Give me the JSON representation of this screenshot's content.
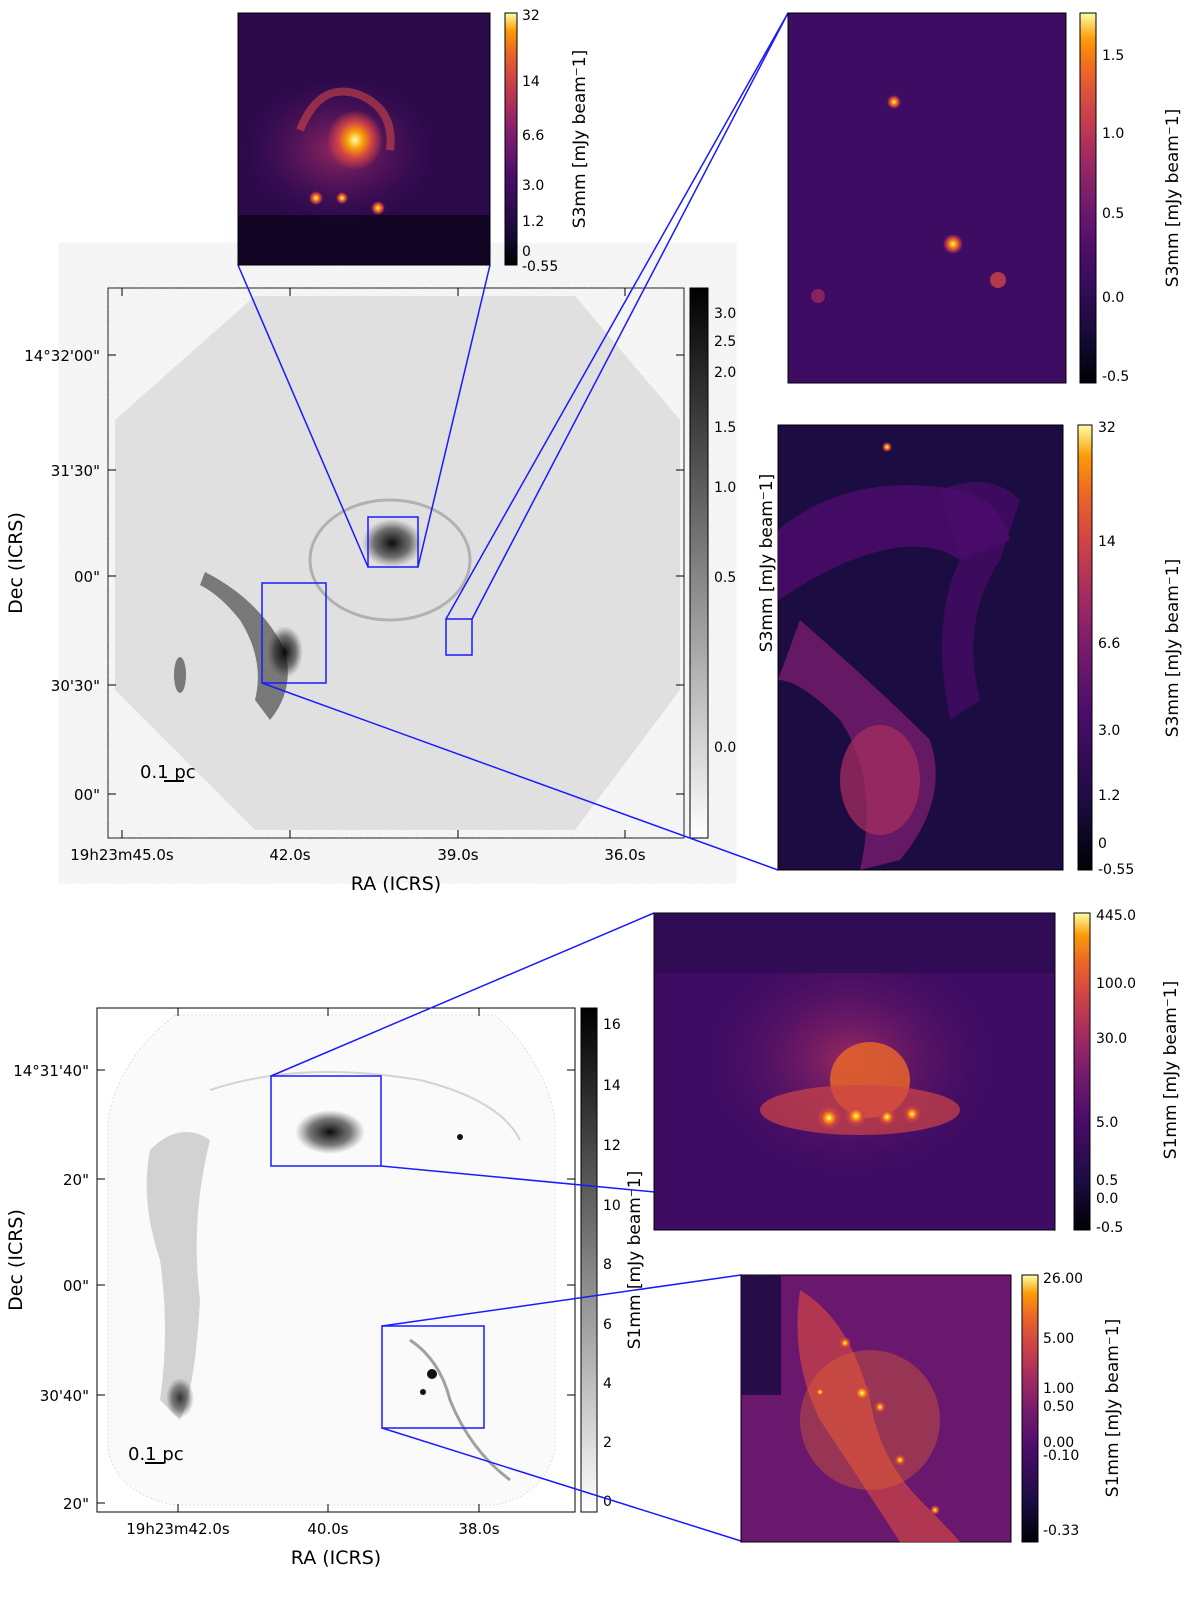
{
  "figure_top": {
    "main_map": {
      "xlabel": "RA (ICRS)",
      "ylabel": "Dec (ICRS)",
      "ra_ticks": [
        "19h23m45.0s",
        "42.0s",
        "39.0s",
        "36.0s"
      ],
      "dec_ticks": [
        "14°32'00\"",
        "31'30\"",
        "00\"",
        "30'30\"",
        "00\""
      ],
      "scalebar": "0.1 pc",
      "colorbar": {
        "label": "S3mm [mJy beam⁻1]",
        "ticks": [
          "3.0",
          "2.5",
          "2.0",
          "1.5",
          "1.0",
          "0.5",
          "0.0"
        ],
        "colormap": "gray_r"
      }
    },
    "inset_top_left": {
      "colorbar": {
        "label": "S3mm [mJy beam⁻1]",
        "ticks": [
          "32",
          "14",
          "6.6",
          "3.0",
          "1.2",
          "0",
          "-0.55"
        ],
        "colormap": "inferno"
      }
    },
    "inset_top_right": {
      "colorbar": {
        "label": "S3mm [mJy beam⁻1]",
        "ticks": [
          "1.5",
          "1.0",
          "0.5",
          "0.0",
          "-0.5"
        ],
        "colormap": "inferno"
      }
    },
    "inset_middle_right": {
      "colorbar": {
        "label": "S3mm [mJy beam⁻1]",
        "ticks": [
          "32",
          "14",
          "6.6",
          "3.0",
          "1.2",
          "0",
          "-0.55"
        ],
        "colormap": "inferno"
      }
    }
  },
  "figure_bottom": {
    "main_map": {
      "xlabel": "RA (ICRS)",
      "ylabel": "Dec (ICRS)",
      "ra_ticks": [
        "19h23m42.0s",
        "40.0s",
        "38.0s"
      ],
      "dec_ticks": [
        "14°31'40\"",
        "20\"",
        "00\"",
        "30'40\"",
        "20\""
      ],
      "scalebar": "0.1 pc",
      "colorbar": {
        "label": "S1mm [mJy beam⁻1]",
        "ticks": [
          "16",
          "14",
          "12",
          "10",
          "8",
          "6",
          "4",
          "2",
          "0"
        ],
        "colormap": "gray_r"
      }
    },
    "inset_upper": {
      "colorbar": {
        "label": "S1mm [mJy beam⁻1]",
        "ticks": [
          "445.0",
          "100.0",
          "30.0",
          "5.0",
          "0.5",
          "0.0",
          "-0.5"
        ],
        "colormap": "inferno"
      }
    },
    "inset_lower": {
      "colorbar": {
        "label": "S1mm [mJy beam⁻1]",
        "ticks": [
          "26.00",
          "5.00",
          "1.00",
          "0.50",
          "0.00",
          "-0.10",
          "-0.33"
        ],
        "colormap": "inferno"
      }
    }
  }
}
